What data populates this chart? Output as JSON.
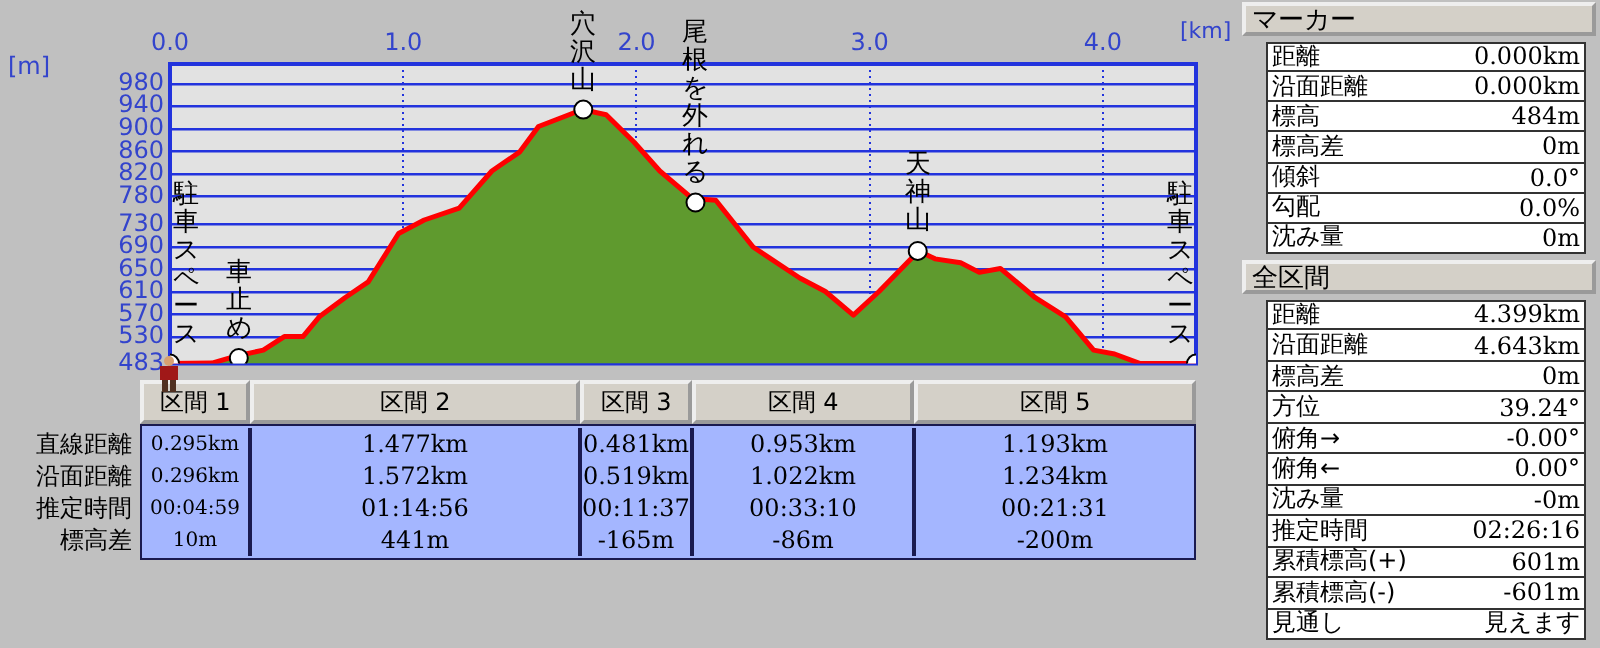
{
  "chart_data": [
    {
      "type": "area",
      "xlabel": "[km]",
      "ylabel": "[m]",
      "x": [
        0,
        0.18,
        0.29,
        0.4,
        0.49,
        0.57,
        0.64,
        0.75,
        0.85,
        0.98,
        1.09,
        1.24,
        1.38,
        1.5,
        1.58,
        1.73,
        1.77,
        1.87,
        1.99,
        2.1,
        2.24,
        2.34,
        2.5,
        2.7,
        2.81,
        2.93,
        3.04,
        3.21,
        3.28,
        3.39,
        3.47,
        3.56,
        3.71,
        3.84,
        3.96,
        4.05,
        4.16,
        4.399
      ],
      "series": [
        {
          "type": "area",
          "color": "#5f9a2e",
          "values": [
            483,
            484,
            497,
            507,
            531,
            531,
            566,
            600,
            628,
            714,
            738,
            759,
            825,
            859,
            904,
            928,
            934,
            925,
            876,
            825,
            776,
            773,
            690,
            635,
            611,
            569,
            611,
            683,
            669,
            662,
            645,
            652,
            600,
            566,
            507,
            500,
            483,
            483
          ]
        },
        {
          "type": "scatter",
          "color": "#ffffff",
          "marker": "circle",
          "x": [
            0,
            0.295,
            1.772,
            2.253,
            3.206,
            4.399
          ],
          "values": [
            483,
            493,
            934,
            769,
            683,
            483
          ]
        }
      ],
      "xlim": [
        0,
        4.399
      ],
      "xticks": [
        {
          "value": 0,
          "label": "0.0"
        },
        {
          "value": 1,
          "label": "1.0"
        },
        {
          "value": 2,
          "label": "2.0"
        },
        {
          "value": 3,
          "label": "3.0"
        },
        {
          "value": 4,
          "label": "4.0"
        }
      ],
      "ylim": [
        483,
        1015
      ],
      "yticks": [
        483,
        530,
        570,
        610,
        650,
        690,
        730,
        780,
        820,
        860,
        900,
        940,
        980
      ],
      "grid": true,
      "legend": false,
      "annotations": [
        {
          "text": "駐車スペース",
          "x": 0,
          "y": 483
        },
        {
          "text": "車止め",
          "x": 0.295,
          "y": 493
        },
        {
          "text": "穴沢山",
          "x": 1.772,
          "y": 934
        },
        {
          "text": "尾根を外れる",
          "x": 2.253,
          "y": 769
        },
        {
          "text": "天神山",
          "x": 3.206,
          "y": 683
        },
        {
          "text": "駐車スペース",
          "x": 4.399,
          "y": 483
        }
      ]
    },
    {
      "type": "other",
      "categories": [
        "区間 1",
        "区間 2",
        "区間 3",
        "区間 4",
        "区間 5"
      ],
      "y_categories": [
        "直線距離",
        "沿面距離",
        "推定時間",
        "標高差"
      ],
      "cell_labels": [
        [
          "0.295km",
          "1.477km",
          "0.481km",
          "0.953km",
          "1.193km"
        ],
        [
          "0.296km",
          "1.572km",
          "0.519km",
          "1.022km",
          "1.234km"
        ],
        [
          "00:04:59",
          "01:14:56",
          "00:11:37",
          "00:33:10",
          "00:21:31"
        ],
        [
          "10m",
          "441m",
          "-165m",
          "-86m",
          "-200m"
        ]
      ]
    },
    {
      "type": "other",
      "title": "マーカー",
      "y_categories": [
        "距離",
        "沿面距離",
        "標高",
        "標高差",
        "傾斜",
        "勾配",
        "沈み量"
      ],
      "cell_labels": [
        [
          "0.000km"
        ],
        [
          "0.000km"
        ],
        [
          "484m"
        ],
        [
          "0m"
        ],
        [
          "0.0°"
        ],
        [
          "0.0%"
        ],
        [
          "0m"
        ]
      ]
    },
    {
      "type": "other",
      "title": "全区間",
      "y_categories": [
        "距離",
        "沿面距離",
        "標高差",
        "方位",
        "俯角→",
        "俯角←",
        "沈み量",
        "推定時間",
        "累積標高(+)",
        "累積標高(-)",
        "見通し"
      ],
      "cell_labels": [
        [
          "4.399km"
        ],
        [
          "4.643km"
        ],
        [
          "0m"
        ],
        [
          "39.24°"
        ],
        [
          "-0.00°"
        ],
        [
          "0.00°"
        ],
        [
          "-0m"
        ],
        [
          "02:26:16"
        ],
        [
          "601m"
        ],
        [
          "-601m"
        ],
        [
          "見えます"
        ]
      ]
    }
  ]
}
